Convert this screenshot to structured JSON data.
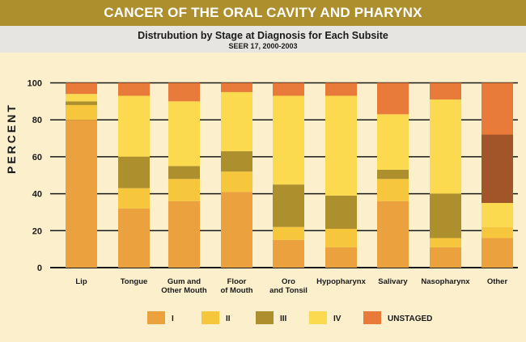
{
  "header": {
    "title": "CANCER OF THE ORAL CAVITY AND PHARYNX",
    "subtitle": "Distrubution by Stage at Diagnosis for Each Subsite",
    "source": "SEER 17, 2000-2003"
  },
  "chart_data": {
    "type": "bar",
    "stacked": true,
    "title": "CANCER OF THE ORAL CAVITY AND PHARYNX",
    "subtitle": "Distrubution by Stage at Diagnosis for Each Subsite — SEER 17, 2000-2003",
    "xlabel": "",
    "ylabel": "PERCENT",
    "ylim": [
      0,
      100
    ],
    "yticks": [
      0,
      20,
      40,
      60,
      80,
      100
    ],
    "grid": true,
    "legend_position": "bottom",
    "categories": [
      [
        "Lip"
      ],
      [
        "Tongue"
      ],
      [
        "Gum and",
        "Other Mouth"
      ],
      [
        "Floor",
        "of Mouth"
      ],
      [
        "Oro",
        "and Tonsil"
      ],
      [
        "Hypopharynx"
      ],
      [
        "Salivary"
      ],
      [
        "Nasopharynx"
      ],
      [
        "Other"
      ]
    ],
    "series": [
      {
        "name": "I",
        "color": "#eba13d",
        "values": [
          80,
          32,
          36,
          41,
          15,
          11,
          36,
          11,
          16
        ]
      },
      {
        "name": "II",
        "color": "#f6c63d",
        "values": [
          8,
          11,
          12,
          11,
          7,
          10,
          12,
          5,
          6
        ]
      },
      {
        "name": "III",
        "color": "#ad8f2e",
        "values": [
          2,
          17,
          7,
          11,
          23,
          18,
          5,
          24,
          0
        ]
      },
      {
        "name": "IV",
        "color": "#fcda50",
        "values": [
          4,
          33,
          35,
          32,
          48,
          54,
          30,
          51,
          13
        ]
      },
      {
        "name": "",
        "color": "#a3552a",
        "values": [
          0,
          0,
          0,
          0,
          0,
          0,
          0,
          0,
          37
        ],
        "in_legend": false
      },
      {
        "name": "UNSTAGED",
        "color": "#e87b3a",
        "values": [
          6,
          7,
          10,
          5,
          7,
          7,
          17,
          9,
          28
        ]
      }
    ]
  }
}
